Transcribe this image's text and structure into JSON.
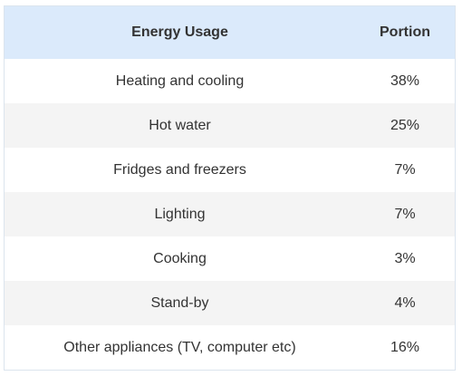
{
  "chart_data": {
    "type": "table",
    "columns": [
      "Energy Usage",
      "Portion"
    ],
    "rows": [
      {
        "label": "Heating and cooling",
        "value": "38%"
      },
      {
        "label": "Hot water",
        "value": "25%"
      },
      {
        "label": "Fridges and freezers",
        "value": "7%"
      },
      {
        "label": "Lighting",
        "value": "7%"
      },
      {
        "label": "Cooking",
        "value": "3%"
      },
      {
        "label": "Stand-by",
        "value": "4%"
      },
      {
        "label": "Other appliances (TV, computer etc)",
        "value": "16%"
      }
    ],
    "colors": {
      "header_bg": "#dbeafb",
      "row_alt_bg": "#f4f4f4",
      "text": "#333333"
    }
  }
}
